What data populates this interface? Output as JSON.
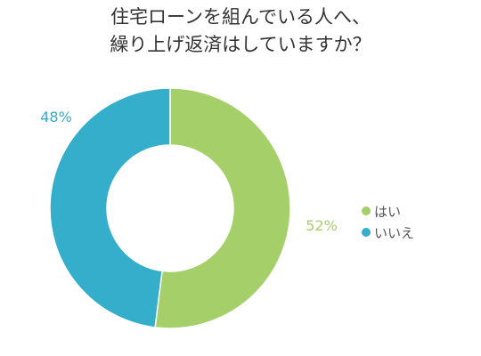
{
  "chart_data": {
    "type": "pie",
    "variant": "donut",
    "title_lines": [
      "住宅ローンを組んでいる人へ、",
      "繰り上げ返済はしていますか？"
    ],
    "categories": [
      "はい",
      "いいえ"
    ],
    "values": [
      52,
      48
    ],
    "value_labels": [
      "52%",
      "48%"
    ],
    "colors": [
      "#a5cf69",
      "#34aecb"
    ],
    "start": "top (12 o'clock), clockwise",
    "legend_position": "right",
    "legend": [
      {
        "label": "はい",
        "color": "#a5cf69"
      },
      {
        "label": "いいえ",
        "color": "#34aecb"
      }
    ]
  }
}
